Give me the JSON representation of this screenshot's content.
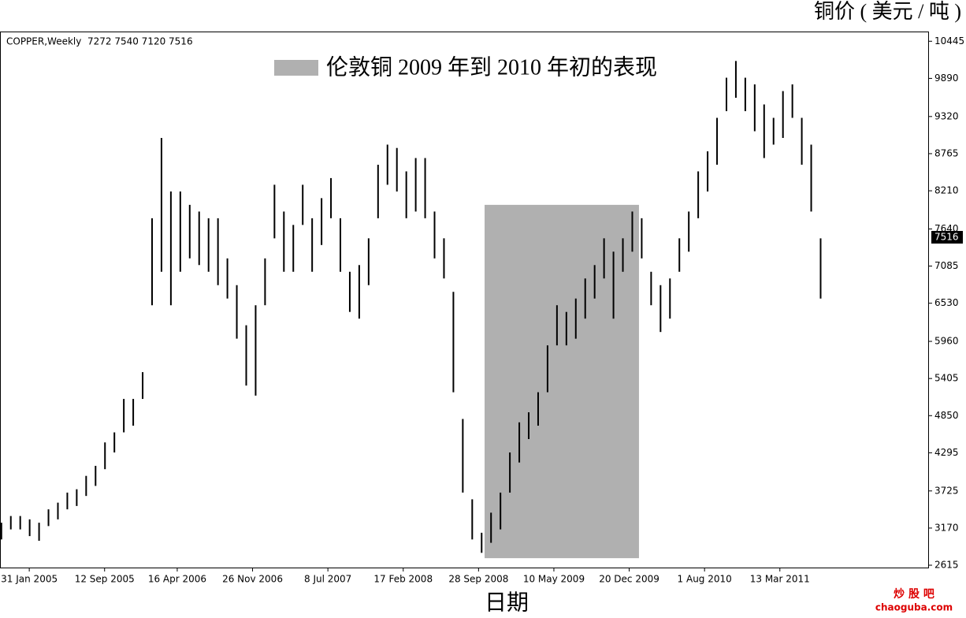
{
  "chart_data": {
    "type": "hilo",
    "info": "COPPER,Weekly  7272 7540 7120 7516",
    "y_axis_title": "铜价 ( 美元 / 吨 )",
    "x_axis_title": "日期",
    "legend_label": "伦敦铜 2009 年到 2010 年初的表现",
    "watermark": {
      "name": "炒 股 吧",
      "url": "chaoguba.com"
    },
    "color": "#000000",
    "highlight": {
      "color": "#b0b0b0",
      "x": [
        "16 Oct 2008",
        "18 Jan 2010"
      ],
      "y": [
        2720,
        8000
      ]
    },
    "last_price": 7516,
    "xlim": [
      "5 Nov 2004",
      "27 May 2012"
    ],
    "xticks": [
      "31 Jan 2005",
      "12 Sep 2005",
      "16 Apr 2006",
      "26 Nov 2006",
      "8 Jul 2007",
      "17 Feb 2008",
      "28 Sep 2008",
      "10 May 2009",
      "20 Dec 2009",
      "1 Aug 2010",
      "13 Mar 2011"
    ],
    "ylim": [
      2580,
      10590
    ],
    "yticks": [
      2615,
      3170,
      3725,
      4295,
      4850,
      5405,
      5960,
      6530,
      7085,
      7640,
      8210,
      8765,
      9320,
      9890,
      10445
    ],
    "x": [
      "8 Nov 2004",
      "6 Dec 2004",
      "3 Jan 2005",
      "31 Jan 2005",
      "28 Feb 2005",
      "28 Mar 2005",
      "25 Apr 2005",
      "23 May 2005",
      "20 Jun 2005",
      "18 Jul 2005",
      "15 Aug 2005",
      "12 Sep 2005",
      "10 Oct 2005",
      "7 Nov 2005",
      "5 Dec 2005",
      "2 Jan 2006",
      "30 Jan 2006",
      "27 Feb 2006",
      "27 Mar 2006",
      "24 Apr 2006",
      "22 May 2006",
      "19 Jun 2006",
      "17 Jul 2006",
      "14 Aug 2006",
      "11 Sep 2006",
      "9 Oct 2006",
      "6 Nov 2006",
      "4 Dec 2006",
      "1 Jan 2007",
      "29 Jan 2007",
      "26 Feb 2007",
      "26 Mar 2007",
      "23 Apr 2007",
      "21 May 2007",
      "18 Jun 2007",
      "16 Jul 2007",
      "13 Aug 2007",
      "10 Sep 2007",
      "8 Oct 2007",
      "5 Nov 2007",
      "3 Dec 2007",
      "31 Dec 2007",
      "28 Jan 2008",
      "25 Feb 2008",
      "24 Mar 2008",
      "21 Apr 2008",
      "19 May 2008",
      "16 Jun 2008",
      "14 Jul 2008",
      "11 Aug 2008",
      "8 Sep 2008",
      "6 Oct 2008",
      "3 Nov 2008",
      "1 Dec 2008",
      "29 Dec 2008",
      "26 Jan 2009",
      "23 Feb 2009",
      "23 Mar 2009",
      "20 Apr 2009",
      "18 May 2009",
      "15 Jun 2009",
      "13 Jul 2009",
      "10 Aug 2009",
      "7 Sep 2009",
      "5 Oct 2009",
      "2 Nov 2009",
      "30 Nov 2009",
      "28 Dec 2009",
      "25 Jan 2010",
      "22 Feb 2010",
      "22 Mar 2010",
      "19 Apr 2010",
      "17 May 2010",
      "14 Jun 2010",
      "12 Jul 2010",
      "9 Aug 2010",
      "6 Sep 2010",
      "4 Oct 2010",
      "1 Nov 2010",
      "29 Nov 2010",
      "27 Dec 2010",
      "24 Jan 2011",
      "21 Feb 2011",
      "21 Mar 2011",
      "18 Apr 2011",
      "16 May 2011",
      "13 Jun 2011",
      "11 Jul 2011"
    ],
    "high": [
      3250,
      3350,
      3350,
      3300,
      3250,
      3450,
      3550,
      3700,
      3750,
      3950,
      4100,
      4450,
      4600,
      5100,
      5100,
      5500,
      7800,
      9000,
      8200,
      8200,
      8000,
      7900,
      7800,
      7800,
      7200,
      6800,
      6200,
      6500,
      7200,
      8300,
      7900,
      7700,
      8300,
      7800,
      8100,
      8400,
      7800,
      7000,
      7100,
      7500,
      8600,
      8900,
      8850,
      8500,
      8700,
      8700,
      7900,
      7500,
      6700,
      4800,
      3600,
      3100,
      3400,
      3700,
      4300,
      4750,
      4900,
      5200,
      5900,
      6500,
      6400,
      6600,
      6900,
      7100,
      7500,
      7300,
      7500,
      7900,
      7800,
      7000,
      6800,
      6900,
      7500,
      7900,
      8500,
      8800,
      9300,
      9900,
      10150,
      9900,
      9800,
      9500,
      9300,
      9700,
      9800,
      9300,
      8900,
      7500
    ],
    "low": [
      3000,
      3150,
      3150,
      3050,
      2980,
      3200,
      3300,
      3450,
      3500,
      3650,
      3800,
      4050,
      4300,
      4600,
      4700,
      5100,
      6500,
      7000,
      6500,
      7000,
      7200,
      7100,
      7000,
      6800,
      6600,
      6000,
      5300,
      5150,
      6500,
      7500,
      7000,
      7000,
      7700,
      7000,
      7400,
      7800,
      7000,
      6400,
      6300,
      6800,
      7800,
      8300,
      8200,
      7800,
      7900,
      7800,
      7200,
      6900,
      5200,
      3700,
      3000,
      2800,
      2950,
      3150,
      3700,
      4150,
      4500,
      4700,
      5200,
      5900,
      5900,
      6000,
      6300,
      6600,
      6900,
      6300,
      7000,
      7300,
      7200,
      6500,
      6100,
      6300,
      7000,
      7300,
      7800,
      8200,
      8600,
      9400,
      9600,
      9400,
      9100,
      8700,
      8900,
      9000,
      9300,
      8600,
      7900,
      6600
    ]
  }
}
